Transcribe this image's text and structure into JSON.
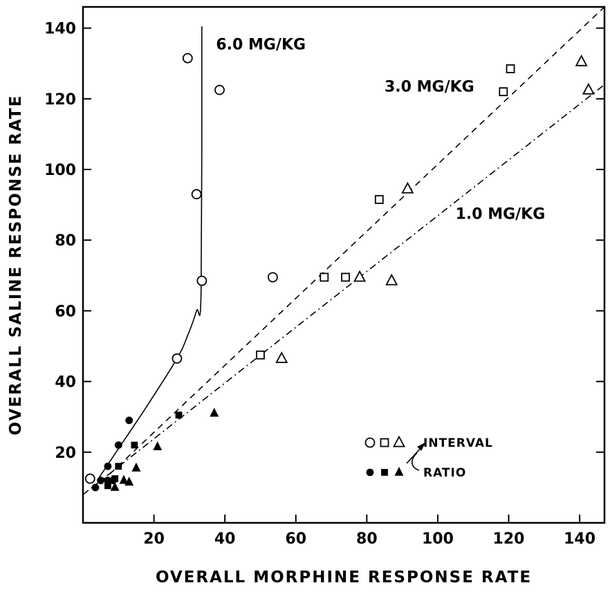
{
  "chart_data": {
    "type": "scatter",
    "xlabel": "OVERALL MORPHINE RESPONSE RATE",
    "ylabel": "OVERALL SALINE RESPONSE RATE",
    "xlim": [
      0,
      147
    ],
    "ylim": [
      0,
      146
    ],
    "x_ticks": [
      20,
      40,
      60,
      80,
      100,
      120,
      140
    ],
    "y_ticks": [
      20,
      40,
      60,
      80,
      100,
      120,
      140
    ],
    "x_tick_labels": [
      "20",
      "40",
      "60",
      "80",
      "100",
      "120",
      "140"
    ],
    "y_tick_labels": [
      "20",
      "40",
      "60",
      "80",
      "100",
      "120",
      "140"
    ],
    "series": [
      {
        "name": "6.0 MG/KG",
        "schedule": "INTERVAL",
        "marker": "circle",
        "filled": false,
        "points": [
          [
            2.0,
            12.5
          ],
          [
            26.5,
            46.5
          ],
          [
            33.5,
            68.5
          ],
          [
            32,
            93
          ],
          [
            38.5,
            122.5
          ],
          [
            29.5,
            131.5
          ],
          [
            53.5,
            69.5
          ]
        ]
      },
      {
        "name": "3.0 MG/KG",
        "schedule": "INTERVAL",
        "marker": "square",
        "filled": false,
        "points": [
          [
            50,
            47.5
          ],
          [
            68,
            69.5
          ],
          [
            74,
            69.5
          ],
          [
            83.5,
            91.5
          ],
          [
            118.5,
            122
          ],
          [
            120.5,
            128.5
          ]
        ]
      },
      {
        "name": "1.0 MG/KG",
        "schedule": "INTERVAL",
        "marker": "triangle",
        "filled": false,
        "points": [
          [
            56,
            46.5
          ],
          [
            78,
            69.5
          ],
          [
            87,
            68.5
          ],
          [
            91.5,
            94.5
          ],
          [
            140.5,
            130.5
          ],
          [
            142.5,
            122.5
          ]
        ]
      },
      {
        "name": "6.0 MG/KG",
        "schedule": "RATIO",
        "marker": "circle",
        "filled": true,
        "points": [
          [
            3.5,
            10
          ],
          [
            5,
            12
          ],
          [
            7,
            12
          ],
          [
            8.5,
            12
          ],
          [
            7,
            16
          ],
          [
            10,
            22
          ],
          [
            13,
            29
          ]
        ]
      },
      {
        "name": "3.0 MG/KG",
        "schedule": "RATIO",
        "marker": "square",
        "filled": true,
        "points": [
          [
            7,
            10.5
          ],
          [
            9,
            12.5
          ],
          [
            10,
            16
          ],
          [
            14.5,
            22
          ],
          [
            27,
            30.5
          ]
        ]
      },
      {
        "name": "1.0 MG/KG",
        "schedule": "RATIO",
        "marker": "triangle",
        "filled": true,
        "points": [
          [
            9,
            10
          ],
          [
            11.5,
            12
          ],
          [
            13,
            11.5
          ],
          [
            15,
            15.5
          ],
          [
            21,
            21.5
          ],
          [
            37,
            31
          ]
        ]
      }
    ],
    "fit_lines": [
      {
        "name": "6.0 MG/KG",
        "style": "solid",
        "points": [
          [
            4,
            12
          ],
          [
            10,
            21
          ],
          [
            18,
            33
          ],
          [
            26.5,
            46.5
          ],
          [
            29.5,
            53
          ],
          [
            32,
            60
          ],
          [
            33.3,
            66
          ],
          [
            33.5,
            140.5
          ]
        ]
      },
      {
        "name": "3.0 MG/KG",
        "style": "dashed",
        "points": [
          [
            3,
            9.5
          ],
          [
            147,
            146
          ]
        ]
      },
      {
        "name": "1.0 MG/KG",
        "style": "dash-dot",
        "points": [
          [
            0,
            8
          ],
          [
            147,
            124
          ]
        ]
      }
    ],
    "annotations": [
      {
        "text": "6.0 MG/KG",
        "x": 37.5,
        "y": 134
      },
      {
        "text": "3.0 MG/KG",
        "x": 85,
        "y": 122
      },
      {
        "text": "1.0 MG/KG",
        "x": 105,
        "y": 86
      }
    ],
    "legend": {
      "position": "bottom-right",
      "entries": [
        {
          "label": "INTERVAL",
          "filled": false
        },
        {
          "label": "RATIO",
          "filled": true
        }
      ]
    }
  }
}
